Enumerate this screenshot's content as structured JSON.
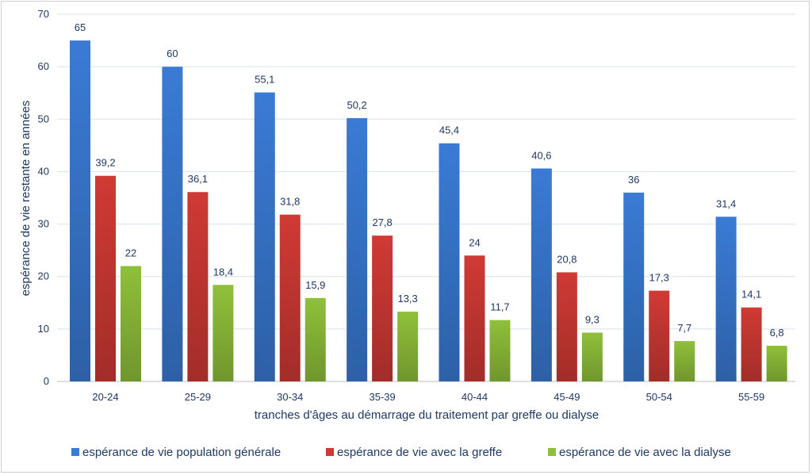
{
  "chart_data": {
    "type": "bar",
    "title": "",
    "xlabel": "tranches d'âges au démarrage du traitement par greffe ou dialyse",
    "ylabel": "espérance de vie restante en années",
    "ylim": [
      0,
      70
    ],
    "yticks": [
      0,
      10,
      20,
      30,
      40,
      50,
      60,
      70
    ],
    "grid": true,
    "legend_position": "bottom",
    "categories": [
      "20-24",
      "25-29",
      "30-34",
      "35-39",
      "40-44",
      "45-49",
      "50-54",
      "55-59"
    ],
    "series": [
      {
        "name": "espérance de vie population générale",
        "color": "#3a7bd5",
        "values": [
          65,
          60,
          55.1,
          50.2,
          45.4,
          40.6,
          36,
          31.4
        ],
        "labels": [
          "65",
          "60",
          "55,1",
          "50,2",
          "45,4",
          "40,6",
          "36",
          "31,4"
        ]
      },
      {
        "name": "espérance de vie avec la greffe",
        "color": "#d03a35",
        "values": [
          39.2,
          36.1,
          31.8,
          27.8,
          24,
          20.8,
          17.3,
          14.1
        ],
        "labels": [
          "39,2",
          "36,1",
          "31,8",
          "27,8",
          "24",
          "20,8",
          "17,3",
          "14,1"
        ]
      },
      {
        "name": "espérance de vie avec la dialyse",
        "color": "#8fc03a",
        "values": [
          22,
          18.4,
          15.9,
          13.3,
          11.7,
          9.3,
          7.7,
          6.8
        ],
        "labels": [
          "22",
          "18,4",
          "15,9",
          "13,3",
          "11,7",
          "9,3",
          "7,7",
          "6,8"
        ]
      }
    ]
  }
}
